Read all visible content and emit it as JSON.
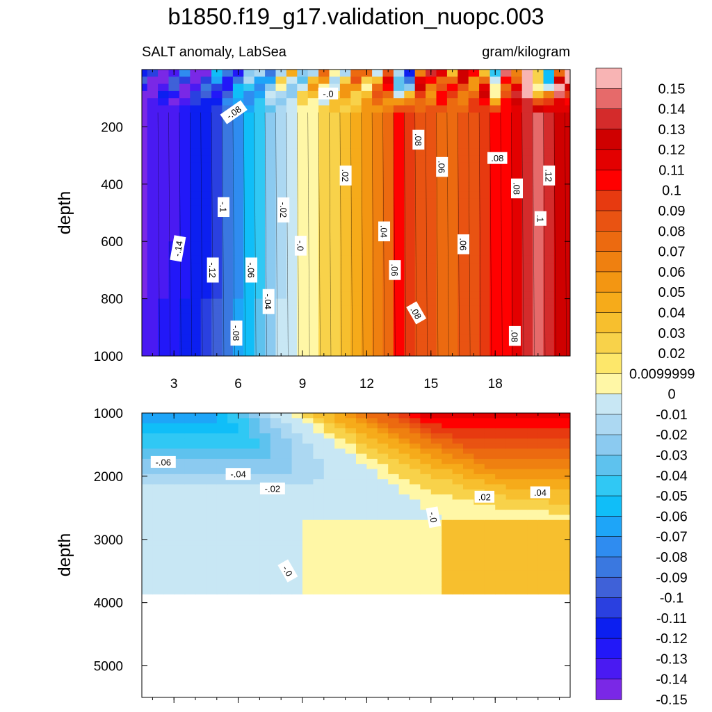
{
  "chart_data": {
    "type": "heatmap",
    "title": "b1850.f19_g17.validation_nuopc.003",
    "subtitle_left": "SALT anomaly, LabSea",
    "subtitle_right": "gram/kilogram",
    "colors": [
      "#7a28e6",
      "#4a1af2",
      "#2218f8",
      "#0c1ff0",
      "#2a40e0",
      "#3f61d8",
      "#3a78e0",
      "#2f8cf0",
      "#1ea5f8",
      "#10bef8",
      "#30c8f4",
      "#5ec2ee",
      "#8bcaf0",
      "#acd8f2",
      "#c8e7f4",
      "#fff7a6",
      "#fde76a",
      "#f8d24a",
      "#f7bf2e",
      "#f6ab1a",
      "#f39612",
      "#ef8010",
      "#ec6a10",
      "#e95312",
      "#e73a10",
      "#ff0000",
      "#e30000",
      "#cf0000",
      "#d42b2b",
      "#e66a6a",
      "#f8b4b4"
    ],
    "colorbar": {
      "labels": [
        "0.15",
        "0.14",
        "0.13",
        "0.12",
        "0.11",
        "0.1",
        "0.09",
        "0.08",
        "0.07",
        "0.06",
        "0.05",
        "0.04",
        "0.03",
        "0.02",
        "0.0099999",
        "0",
        "-0.01",
        "-0.02",
        "-0.03",
        "-0.04",
        "-0.05",
        "-0.06",
        "-0.07",
        "-0.08",
        "-0.09",
        "-0.1",
        "-0.11",
        "-0.12",
        "-0.13",
        "-0.14",
        "-0.15"
      ]
    },
    "top": {
      "ylabel": "depth",
      "xlim": [
        1.5,
        21.5
      ],
      "ylim": [
        0,
        1000
      ],
      "yticks": [
        200,
        400,
        600,
        800,
        1000
      ],
      "xticks": [
        3,
        6,
        9,
        12,
        15,
        18
      ],
      "xtick_labels": [
        "3",
        "6",
        "9",
        "12",
        "15",
        "18"
      ],
      "ytick_labels": [
        "200",
        "400",
        "600",
        "800",
        "1000"
      ],
      "x": [
        1.5,
        2,
        2.5,
        3,
        3.5,
        4,
        4.5,
        5,
        5.5,
        6,
        6.5,
        7,
        7.5,
        8,
        8.5,
        9,
        9.5,
        10,
        10.5,
        11,
        11.5,
        12,
        12.5,
        13,
        13.5,
        14,
        14.5,
        15,
        15.5,
        16,
        16.5,
        17,
        17.5,
        18,
        18.5,
        19,
        19.5,
        20,
        20.5,
        21,
        21.5
      ],
      "profile": [
        -0.155,
        -0.15,
        -0.145,
        -0.14,
        -0.135,
        -0.13,
        -0.125,
        -0.115,
        -0.1,
        -0.085,
        -0.07,
        -0.055,
        -0.04,
        -0.025,
        -0.012,
        0.0,
        0.006,
        0.012,
        0.016,
        0.02,
        0.03,
        0.04,
        0.05,
        0.062,
        0.09,
        0.085,
        0.075,
        0.07,
        0.066,
        0.066,
        0.07,
        0.078,
        0.085,
        0.09,
        0.095,
        0.105,
        0.12,
        0.13,
        0.12,
        0.11,
        0.11
      ],
      "contour_labels": [
        {
          "t": "-.0",
          "x": 10.2,
          "y": 85,
          "a": 0
        },
        {
          "t": "-.08",
          "x": 5.8,
          "y": 150,
          "a": -35
        },
        {
          "t": ".08",
          "x": 14.4,
          "y": 245,
          "a": 90
        },
        {
          "t": ".08",
          "x": 18.1,
          "y": 310,
          "a": 0
        },
        {
          "t": ".06",
          "x": 15.5,
          "y": 340,
          "a": 90
        },
        {
          "t": ".02",
          "x": 11,
          "y": 370,
          "a": 90
        },
        {
          "t": ".12",
          "x": 20.5,
          "y": 370,
          "a": 90
        },
        {
          "t": ".08",
          "x": 19,
          "y": 415,
          "a": 90
        },
        {
          "t": "-.1",
          "x": 5.3,
          "y": 480,
          "a": 90
        },
        {
          "t": "-.02",
          "x": 8.1,
          "y": 490,
          "a": 90
        },
        {
          "t": ".1",
          "x": 20.1,
          "y": 520,
          "a": 90
        },
        {
          "t": ".04",
          "x": 12.8,
          "y": 565,
          "a": 90
        },
        {
          "t": "-.0",
          "x": 8.9,
          "y": 615,
          "a": 90
        },
        {
          "t": "-.14",
          "x": 3.2,
          "y": 625,
          "a": -80
        },
        {
          "t": ".06",
          "x": 16.5,
          "y": 610,
          "a": 90
        },
        {
          "t": "-.12",
          "x": 4.8,
          "y": 700,
          "a": 90
        },
        {
          "t": "-.06",
          "x": 6.6,
          "y": 700,
          "a": 90
        },
        {
          "t": ".06",
          "x": 13.3,
          "y": 700,
          "a": 90
        },
        {
          "t": "-.04",
          "x": 7.4,
          "y": 810,
          "a": 90
        },
        {
          "t": ".08",
          "x": 14.3,
          "y": 850,
          "a": 60
        },
        {
          "t": "-.08",
          "x": 5.9,
          "y": 920,
          "a": 90
        },
        {
          "t": ".08",
          "x": 18.9,
          "y": 930,
          "a": 90
        }
      ]
    },
    "bottom": {
      "ylabel": "depth",
      "xlim": [
        1.5,
        21.5
      ],
      "ylim": [
        1000,
        5500
      ],
      "yticks": [
        1000,
        2000,
        3000,
        4000,
        5000
      ],
      "ytick_labels": [
        "1000",
        "2000",
        "3000",
        "4000",
        "5000"
      ],
      "ocean_floor": 3870,
      "contour_labels": [
        {
          "t": "-.06",
          "x": 2.5,
          "y": 1780,
          "a": 0
        },
        {
          "t": "-.04",
          "x": 6,
          "y": 1970,
          "a": 0
        },
        {
          "t": "-.02",
          "x": 7.6,
          "y": 2200,
          "a": 0
        },
        {
          "t": "-.0",
          "x": 15.1,
          "y": 2650,
          "a": 80
        },
        {
          "t": ".02",
          "x": 17.5,
          "y": 2330,
          "a": 0
        },
        {
          "t": ".04",
          "x": 20.1,
          "y": 2260,
          "a": 0
        },
        {
          "t": "-.0",
          "x": 8.3,
          "y": 3500,
          "a": 60
        }
      ]
    }
  }
}
